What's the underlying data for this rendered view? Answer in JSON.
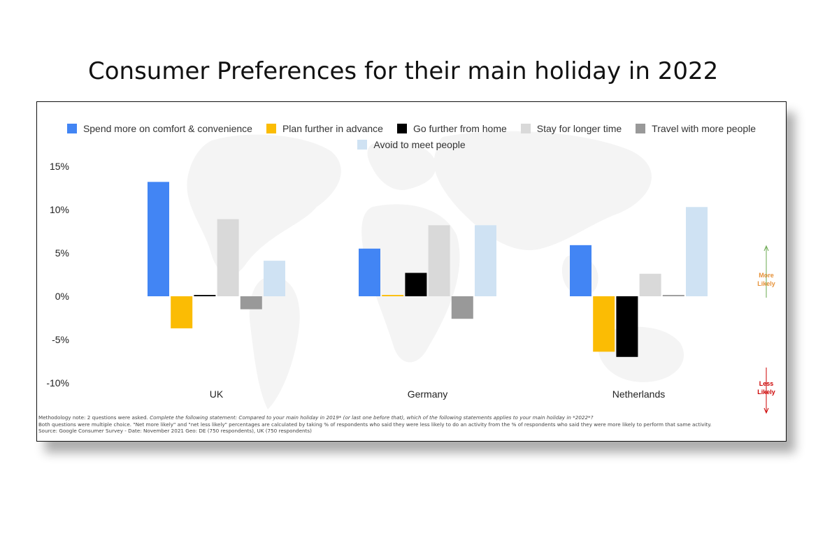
{
  "page": {
    "title": "Consumer Preferences for their main holiday in 2022"
  },
  "chart_data": {
    "type": "bar",
    "title": "Consumer Preferences for their main holiday in 2022",
    "categories": [
      "UK",
      "Germany",
      "Netherlands"
    ],
    "ylim": [
      -10,
      15
    ],
    "yticks": [
      15,
      10,
      5,
      0,
      -5,
      -10
    ],
    "ytick_labels": [
      "15%",
      "10%",
      "5%",
      "0%",
      "-5%",
      "-10%"
    ],
    "grid": false,
    "legend_position": "top",
    "series": [
      {
        "name": "Spend more on comfort & convenience",
        "color": "#4285f4",
        "values": [
          13.2,
          5.5,
          5.9
        ]
      },
      {
        "name": "Plan further in advance",
        "color": "#fbbc04",
        "values": [
          -3.7,
          0.15,
          -6.4
        ]
      },
      {
        "name": "Go further from home",
        "color": "#000000",
        "values": [
          0.15,
          2.7,
          -7.0
        ]
      },
      {
        "name": "Stay for longer time",
        "color": "#d9d9d9",
        "values": [
          8.9,
          8.2,
          2.6
        ]
      },
      {
        "name": "Travel with more people",
        "color": "#999999",
        "values": [
          -1.5,
          -2.6,
          0.15
        ]
      },
      {
        "name": "Avoid to meet people",
        "color": "#cfe2f3",
        "values": [
          4.1,
          8.2,
          10.3
        ]
      }
    ],
    "annotations": {
      "more_likely": "More Likely",
      "less_likely": "Less Likely",
      "more_color": "#e69138",
      "less_color": "#cc0000",
      "up_arrow_color": "#6aa84f",
      "down_arrow_color": "#cc0000"
    }
  },
  "notes": {
    "line1_plain": "Methodology note: 2 questions were asked. ",
    "line1_italic": "Complete the following statement: Compared to your main holiday in 2019* (or last one before that), which of the following statements applies to your main holiday in *2022*?",
    "line2": "Both questions were multiple choice. \"Net more likely\" and \"net less likely\" percentages are calculated by taking % of respondents who said they were less likely to do an activity from the % of respondents who said they were more likely to perform that same activity.",
    "line3": "Source: Google Consumer Survey - Date: November 2021 Geo: DE (750 respondents), UK (750 respondents)"
  }
}
